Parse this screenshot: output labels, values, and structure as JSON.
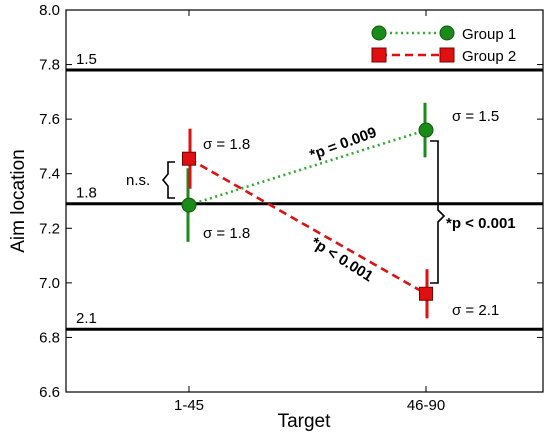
{
  "colors": {
    "group1": "#1a8a1a",
    "group1_line": "#2eaa2e",
    "group2": "#e01010",
    "group2_marker": "#e01010",
    "reference_line": "#000000"
  },
  "chart_data": {
    "type": "line",
    "xlabel": "Target",
    "ylabel": "Aim location",
    "categories": [
      "1-45",
      "46-90"
    ],
    "ylim": [
      6.6,
      8.0
    ],
    "yticks": [
      "6.6",
      "6.8",
      "7.0",
      "7.2",
      "7.4",
      "7.6",
      "7.8",
      "8.0"
    ],
    "grid": false,
    "legend_position": "top-right",
    "series": [
      {
        "name": "Group 1",
        "values": [
          7.285,
          7.56
        ],
        "error": [
          0.135,
          0.1
        ],
        "marker": "circle",
        "line_style": "dotted",
        "sigma_labels": [
          "σ = 1.8",
          "σ = 1.5"
        ]
      },
      {
        "name": "Group 2",
        "values": [
          7.455,
          6.96
        ],
        "error": [
          0.11,
          0.09
        ],
        "marker": "square",
        "line_style": "dashed",
        "sigma_labels": [
          "σ = 1.8",
          "σ = 2.1"
        ]
      }
    ],
    "reference_lines": [
      {
        "y": 7.78,
        "label": "1.5"
      },
      {
        "y": 7.29,
        "label": "1.8"
      },
      {
        "y": 6.83,
        "label": "2.1"
      }
    ],
    "annotations": {
      "ns": "n.s.",
      "group1_p": "*p = 0.009",
      "group2_p": "*p < 0.001",
      "between_p": "*p < 0.001"
    }
  }
}
